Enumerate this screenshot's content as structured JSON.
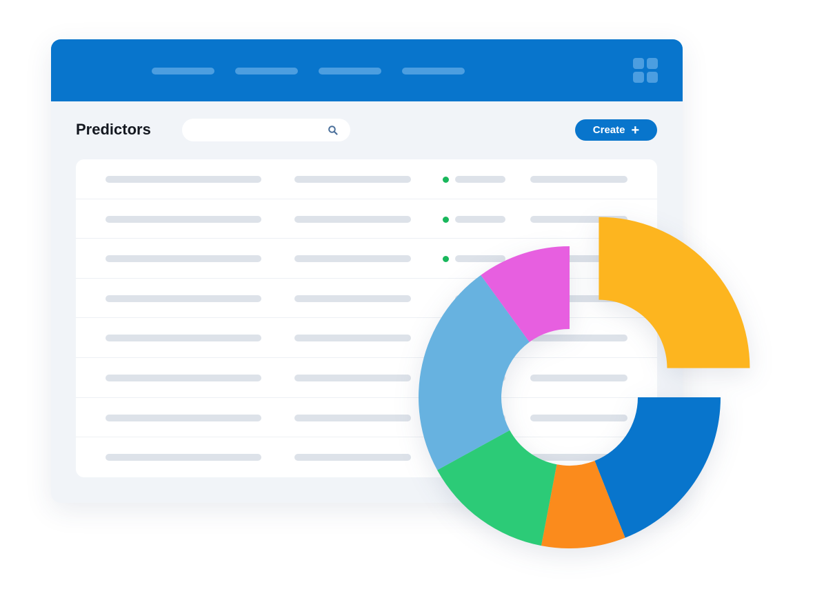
{
  "header": {
    "nav_items": [
      "",
      "",
      "",
      ""
    ],
    "apps_icon": "grid-icon"
  },
  "page": {
    "title": "Predictors",
    "search": {
      "value": "",
      "placeholder": "",
      "icon": "search-icon"
    },
    "create_button": {
      "label": "Create",
      "icon": "plus-icon"
    }
  },
  "table": {
    "rows": [
      {
        "status_dot": true
      },
      {
        "status_dot": true
      },
      {
        "status_dot": true
      },
      {
        "status_dot": false
      },
      {
        "status_dot": false
      },
      {
        "status_dot": false
      },
      {
        "status_dot": false
      },
      {
        "status_dot": false
      }
    ]
  },
  "colors": {
    "brand": "#0875cc",
    "status_active": "#19b75c"
  },
  "chart_data": {
    "type": "pie",
    "donut": true,
    "exploded_segment": 0,
    "segments": [
      {
        "value": 25,
        "color": "#fdb51f"
      },
      {
        "value": 19,
        "color": "#0875cc"
      },
      {
        "value": 9,
        "color": "#fb8b1c"
      },
      {
        "value": 14,
        "color": "#2ccb77"
      },
      {
        "value": 23,
        "color": "#67b2e0"
      },
      {
        "value": 10,
        "color": "#e75fe0"
      }
    ]
  }
}
